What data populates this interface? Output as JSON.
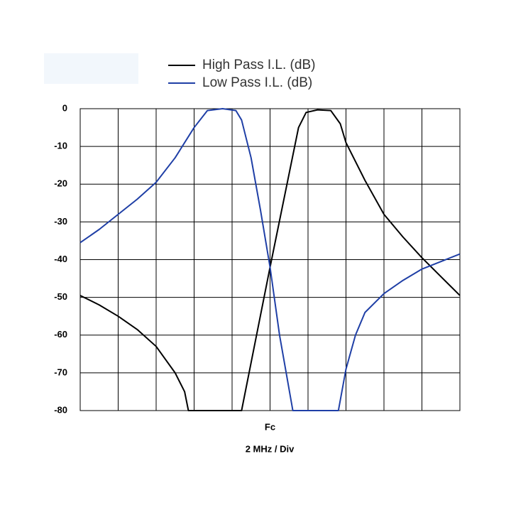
{
  "chart_data": {
    "type": "line",
    "x_label": "2 MHz / Div",
    "xlim": [
      -10,
      10
    ],
    "xticks": [
      {
        "value": -10,
        "label": null
      },
      {
        "value": -8,
        "label": null
      },
      {
        "value": -6,
        "label": null
      },
      {
        "value": -4,
        "label": null
      },
      {
        "value": -2,
        "label": null
      },
      {
        "value": 0,
        "label": "Fc"
      },
      {
        "value": 2,
        "label": null
      },
      {
        "value": 4,
        "label": null
      },
      {
        "value": 6,
        "label": null
      },
      {
        "value": 8,
        "label": null
      },
      {
        "value": 10,
        "label": null
      }
    ],
    "ylim": [
      -80,
      0
    ],
    "yticks": [
      0,
      -10,
      -20,
      -30,
      -40,
      -50,
      -60,
      -70,
      -80
    ],
    "grid": true,
    "legend": "top",
    "series": [
      {
        "name": "High Pass I.L. (dB)",
        "color": "#000000",
        "x": [
          -10,
          -9,
          -8,
          -7,
          -6,
          -5,
          -4.5,
          -4.3,
          -1.5,
          0,
          1.5,
          1.9,
          2.5,
          3.2,
          3.7,
          4,
          5,
          6,
          7,
          8,
          9,
          10
        ],
        "values": [
          -49.5,
          -52,
          -55,
          -58.5,
          -63,
          -70,
          -75,
          -80,
          -80,
          -42,
          -5,
          -1,
          -0.3,
          -0.5,
          -4,
          -9,
          -19,
          -28,
          -34,
          -39.5,
          -44.5,
          -49.5
        ]
      },
      {
        "name": "Low Pass I.L. (dB)",
        "color": "#1f3fa6",
        "x": [
          -10,
          -9,
          -8,
          -7,
          -6,
          -5,
          -4,
          -3.3,
          -2.5,
          -1.8,
          -1.5,
          -1,
          -0.5,
          0,
          0.5,
          1.2,
          3.6,
          4,
          4.5,
          5,
          6,
          7,
          8,
          9,
          10
        ],
        "values": [
          -35.5,
          -32,
          -28,
          -24,
          -19.5,
          -13,
          -5,
          -0.5,
          0,
          -0.5,
          -3,
          -13,
          -27,
          -42,
          -60,
          -80,
          -80,
          -69,
          -60,
          -54,
          -49,
          -45.5,
          -42.5,
          -40.5,
          -38.5
        ]
      }
    ]
  }
}
